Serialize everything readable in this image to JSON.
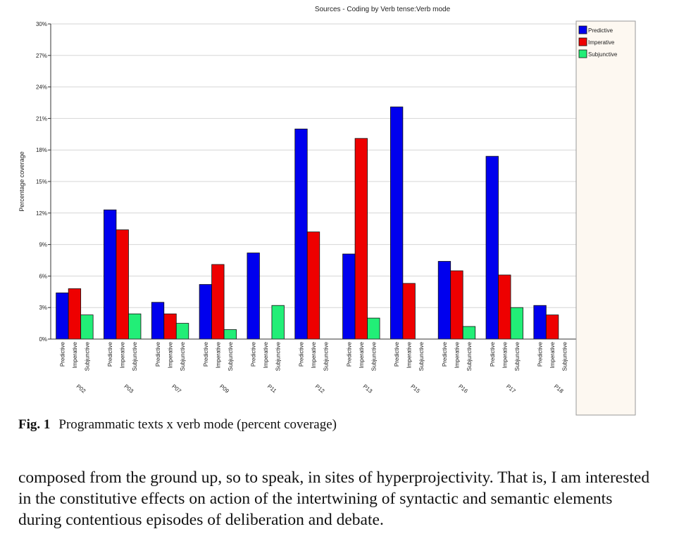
{
  "chart_data": {
    "type": "bar",
    "title": "Sources - Coding by Verb tense:Verb mode",
    "ylabel": "Percentage coverage",
    "xlabel": "",
    "ylim": [
      0,
      30
    ],
    "y_ticks": [
      "0%",
      "3%",
      "6%",
      "9%",
      "12%",
      "15%",
      "18%",
      "21%",
      "24%",
      "27%",
      "30%"
    ],
    "grid": true,
    "legend_position": "right",
    "categories": [
      "P02",
      "P03",
      "P07",
      "P09",
      "P11",
      "P12",
      "P13",
      "P15",
      "P16",
      "P17",
      "P18"
    ],
    "series": [
      {
        "name": "Predictive",
        "color": "#0000ee",
        "values": [
          4.4,
          12.3,
          3.5,
          5.2,
          8.2,
          20.0,
          8.1,
          22.1,
          7.4,
          17.4,
          3.2
        ]
      },
      {
        "name": "Imperative",
        "color": "#ee0000",
        "values": [
          4.8,
          10.4,
          2.4,
          7.1,
          0,
          10.2,
          19.1,
          5.3,
          6.5,
          6.1,
          2.3
        ]
      },
      {
        "name": "Subjunctive",
        "color": "#22ee77",
        "values": [
          2.3,
          2.4,
          1.5,
          0.9,
          3.2,
          0,
          2.0,
          0,
          1.2,
          3.0,
          0
        ]
      }
    ]
  },
  "caption": {
    "label": "Fig. 1",
    "text": "Programmatic texts x verb mode (percent coverage)"
  },
  "body_text": "composed from the ground up, so to speak, in sites of hyperprojectivity. That is, I am interested in the constitutive effects on action of the intertwining of syntactic and semantic elements during contentious episodes of deliberation and debate."
}
